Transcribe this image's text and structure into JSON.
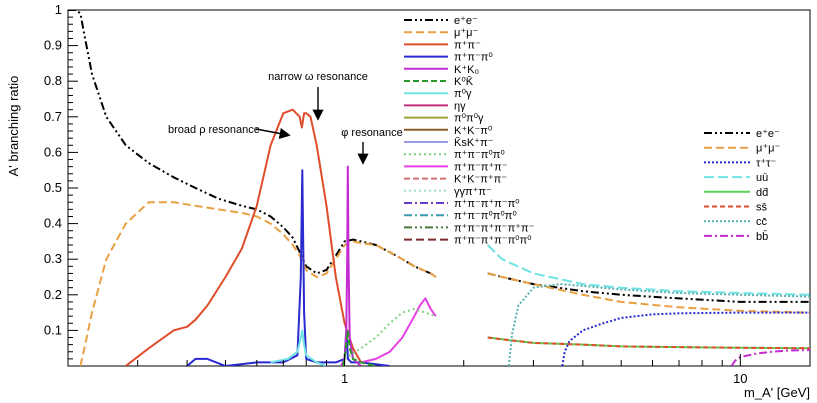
{
  "chart_data": {
    "type": "line",
    "title": "",
    "xlabel": "m_A' [GeV]",
    "ylabel": "A' branching ratio",
    "xscale": "log",
    "xlim": [
      0.2,
      15
    ],
    "ylim": [
      0,
      1
    ],
    "grid": false,
    "x_ticks": [
      {
        "value": 1,
        "label": "1"
      },
      {
        "value": 10,
        "label": "10"
      }
    ],
    "y_ticks": [
      {
        "value": 0.1,
        "label": "0.1"
      },
      {
        "value": 0.2,
        "label": "0.2"
      },
      {
        "value": 0.3,
        "label": "0.3"
      },
      {
        "value": 0.4,
        "label": "0.4"
      },
      {
        "value": 0.5,
        "label": "0.5"
      },
      {
        "value": 0.6,
        "label": "0.6"
      },
      {
        "value": 0.7,
        "label": "0.7"
      },
      {
        "value": 0.8,
        "label": "0.8"
      },
      {
        "value": 0.9,
        "label": "0.9"
      },
      {
        "value": 1,
        "label": "1"
      }
    ],
    "annotations": [
      {
        "text": "narrow ω resonance",
        "x": 0.78,
        "y": 0.71
      },
      {
        "text": "broad ρ resonance",
        "x": 0.7,
        "y": 0.68
      },
      {
        "text": "φ resonance",
        "x": 1.02,
        "y": 0.57
      }
    ],
    "legend_hadronic": {
      "placement": "top-center",
      "entries": [
        {
          "label": "e⁺e⁻",
          "color": "#000000",
          "dash": "8,3,2,3,2,3"
        },
        {
          "label": "μ⁺μ⁻",
          "color": "#e8a043",
          "dash": "8,4"
        },
        {
          "label": "π⁺π⁻",
          "color": "#e04d2b",
          "dash": ""
        },
        {
          "label": "π⁺π⁻π⁰",
          "color": "#2a2ad0",
          "dash": ""
        },
        {
          "label": "K⁺K₀",
          "color": "#c42bd0",
          "dash": ""
        },
        {
          "label": "K⁰K̄",
          "color": "#2a9a2a",
          "dash": "6,3"
        },
        {
          "label": "π⁰γ",
          "color": "#6fe3e3",
          "dash": ""
        },
        {
          "label": "ηγ",
          "color": "#c0307a",
          "dash": ""
        },
        {
          "label": "π⁰π⁰γ",
          "color": "#a0a03a",
          "dash": ""
        },
        {
          "label": "K⁺K⁻π⁰",
          "color": "#8a5a2a",
          "dash": ""
        },
        {
          "label": "K̄sK⁺π⁻",
          "color": "#9a9ae8",
          "dash": ""
        },
        {
          "label": "π⁺π⁻π⁰π⁰",
          "color": "#7fd07f",
          "dash": "2,3"
        },
        {
          "label": "π⁺π⁻π⁺π⁻",
          "color": "#e640e6",
          "dash": ""
        },
        {
          "label": "K⁺K⁻π⁺π⁻",
          "color": "#d07070",
          "dash": "6,3"
        },
        {
          "label": "γγπ⁺π⁻",
          "color": "#a0e0c0",
          "dash": "2,3"
        },
        {
          "label": "π⁺π⁻π⁺π⁻π⁰",
          "color": "#6a3ac8",
          "dash": "8,3,2,3"
        },
        {
          "label": "π⁺π⁻π⁰π⁰π⁰",
          "color": "#3a9ab0",
          "dash": "8,3,2,3"
        },
        {
          "label": "π⁺π⁻π⁺π⁻π⁺π⁻",
          "color": "#4a7a3a",
          "dash": "8,3,2,3,2,3"
        },
        {
          "label": "π⁺π⁻π⁺π⁻π⁰π⁰",
          "color": "#7a2a2a",
          "dash": "8,4"
        }
      ]
    },
    "legend_partonic": {
      "placement": "right",
      "entries": [
        {
          "label": "e⁺e⁻",
          "color": "#000000",
          "dash": "8,3,2,3,2,3"
        },
        {
          "label": "μ⁺μ⁻",
          "color": "#e8a043",
          "dash": "8,4"
        },
        {
          "label": "τ⁺τ⁻",
          "color": "#2a2ad0",
          "dash": "2,2"
        },
        {
          "label": "uū",
          "color": "#6fe3e3",
          "dash": "10,4"
        },
        {
          "label": "dd̄",
          "color": "#5ad05a",
          "dash": ""
        },
        {
          "label": "ss̄",
          "color": "#e04d2b",
          "dash": "5,3"
        },
        {
          "label": "cc̄",
          "color": "#5ab0b0",
          "dash": "2,2"
        },
        {
          "label": "bb̄",
          "color": "#c42bd0",
          "dash": "8,3,2,3"
        }
      ]
    },
    "series": [
      {
        "key": "ee_low",
        "color": "#000000",
        "dash": "8,3,2,3,2,3",
        "x": [
          0.2,
          0.21,
          0.215,
          0.22,
          0.23,
          0.25,
          0.28,
          0.32,
          0.37,
          0.42,
          0.48,
          0.55,
          0.6,
          0.65,
          0.7,
          0.74,
          0.77,
          0.8,
          0.85,
          0.9,
          0.95,
          1.0,
          1.05,
          1.1,
          1.2,
          1.35,
          1.5,
          1.65,
          1.7
        ],
        "y": [
          1.0,
          1.0,
          0.99,
          0.93,
          0.82,
          0.7,
          0.62,
          0.57,
          0.53,
          0.5,
          0.47,
          0.45,
          0.44,
          0.42,
          0.39,
          0.36,
          0.32,
          0.28,
          0.26,
          0.27,
          0.31,
          0.35,
          0.355,
          0.35,
          0.34,
          0.31,
          0.28,
          0.26,
          0.25
        ]
      },
      {
        "key": "mumu_low",
        "color": "#e8a043",
        "dash": "8,4",
        "x": [
          0.215,
          0.22,
          0.23,
          0.25,
          0.28,
          0.32,
          0.37,
          0.42,
          0.48,
          0.55,
          0.6,
          0.65,
          0.7,
          0.74,
          0.77,
          0.8,
          0.85,
          0.9,
          0.95,
          1.0,
          1.05,
          1.1,
          1.2,
          1.35,
          1.5,
          1.65,
          1.7
        ],
        "y": [
          0.0,
          0.05,
          0.15,
          0.3,
          0.4,
          0.46,
          0.46,
          0.45,
          0.44,
          0.43,
          0.42,
          0.4,
          0.37,
          0.34,
          0.31,
          0.27,
          0.25,
          0.26,
          0.3,
          0.34,
          0.35,
          0.345,
          0.34,
          0.31,
          0.28,
          0.26,
          0.25
        ]
      },
      {
        "key": "pipi",
        "color": "#e04d2b",
        "dash": "",
        "x": [
          0.28,
          0.32,
          0.37,
          0.4,
          0.42,
          0.45,
          0.5,
          0.55,
          0.6,
          0.65,
          0.7,
          0.74,
          0.77,
          0.78,
          0.79,
          0.8,
          0.82,
          0.85,
          0.9,
          0.95,
          1.0,
          1.05,
          1.1
        ],
        "y": [
          0.0,
          0.05,
          0.1,
          0.11,
          0.13,
          0.17,
          0.25,
          0.33,
          0.45,
          0.62,
          0.71,
          0.72,
          0.7,
          0.67,
          0.71,
          0.71,
          0.7,
          0.62,
          0.45,
          0.25,
          0.12,
          0.05,
          0.01
        ]
      },
      {
        "key": "pipipi0",
        "color": "#2a2ad0",
        "dash": "",
        "x": [
          0.4,
          0.42,
          0.45,
          0.5,
          0.6,
          0.7,
          0.76,
          0.775,
          0.782,
          0.79,
          0.8,
          0.85,
          0.95,
          1.0,
          1.01,
          1.02,
          1.04,
          1.1,
          1.3
        ],
        "y": [
          0.0,
          0.02,
          0.02,
          0.0,
          0.01,
          0.01,
          0.03,
          0.25,
          0.55,
          0.15,
          0.02,
          0.01,
          0.01,
          0.02,
          0.1,
          0.02,
          0.01,
          0.01,
          0.0
        ]
      },
      {
        "key": "pi0gamma",
        "color": "#6fe3e3",
        "dash": "",
        "x": [
          0.65,
          0.72,
          0.76,
          0.775,
          0.782,
          0.79,
          0.8,
          0.85,
          0.9
        ],
        "y": [
          0.01,
          0.02,
          0.04,
          0.08,
          0.1,
          0.06,
          0.03,
          0.01,
          0.0
        ]
      },
      {
        "key": "KK",
        "color": "#c42bd0",
        "dash": "",
        "x": [
          0.98,
          1.0,
          1.01,
          1.015,
          1.019,
          1.023,
          1.03,
          1.05,
          1.1
        ],
        "y": [
          0.0,
          0.02,
          0.1,
          0.3,
          0.56,
          0.3,
          0.08,
          0.02,
          0.0
        ]
      },
      {
        "key": "4pi",
        "color": "#e640e6",
        "dash": "",
        "x": [
          1.1,
          1.2,
          1.3,
          1.4,
          1.5,
          1.55,
          1.6,
          1.65,
          1.7
        ],
        "y": [
          0.01,
          0.02,
          0.04,
          0.08,
          0.14,
          0.17,
          0.19,
          0.16,
          0.14
        ]
      },
      {
        "key": "4pi_neutral",
        "color": "#7fd07f",
        "dash": "2,3",
        "x": [
          1.0,
          1.1,
          1.2,
          1.3,
          1.4,
          1.5,
          1.6,
          1.7
        ],
        "y": [
          0.02,
          0.05,
          0.08,
          0.12,
          0.15,
          0.16,
          0.15,
          0.14
        ]
      },
      {
        "key": "K0K0bar",
        "color": "#2a9a2a",
        "dash": "6,3",
        "x": [
          0.99,
          1.0,
          1.01,
          1.019,
          1.03,
          1.05,
          1.1,
          1.2
        ],
        "y": [
          0.0,
          0.02,
          0.06,
          0.1,
          0.05,
          0.02,
          0.01,
          0.0
        ]
      },
      {
        "key": "ee_high",
        "color": "#000000",
        "dash": "8,3,2,3,2,3",
        "x": [
          2.3,
          2.5,
          3.0,
          4.0,
          5.0,
          7.0,
          10.0,
          15.0
        ],
        "y": [
          0.26,
          0.25,
          0.23,
          0.21,
          0.2,
          0.19,
          0.18,
          0.18
        ]
      },
      {
        "key": "mumu_high",
        "color": "#e8a043",
        "dash": "8,4",
        "x": [
          2.3,
          2.5,
          3.0,
          4.0,
          5.0,
          7.0,
          10.0,
          15.0
        ],
        "y": [
          0.26,
          0.25,
          0.23,
          0.2,
          0.18,
          0.165,
          0.155,
          0.15
        ]
      },
      {
        "key": "uu",
        "color": "#6fe3e3",
        "dash": "10,4",
        "x": [
          2.3,
          2.5,
          3.0,
          4.0,
          5.0,
          7.0,
          10.0,
          15.0
        ],
        "y": [
          0.34,
          0.3,
          0.26,
          0.23,
          0.22,
          0.21,
          0.205,
          0.2
        ]
      },
      {
        "key": "dd",
        "color": "#5ad05a",
        "dash": "",
        "x": [
          2.3,
          2.5,
          3.0,
          4.0,
          5.0,
          7.0,
          10.0,
          15.0
        ],
        "y": [
          0.08,
          0.075,
          0.065,
          0.06,
          0.055,
          0.053,
          0.051,
          0.05
        ]
      },
      {
        "key": "ss",
        "color": "#e04d2b",
        "dash": "5,3",
        "x": [
          2.3,
          2.5,
          3.0,
          4.0,
          5.0,
          7.0,
          10.0,
          15.0
        ],
        "y": [
          0.08,
          0.075,
          0.065,
          0.06,
          0.055,
          0.053,
          0.051,
          0.05
        ]
      },
      {
        "key": "cc",
        "color": "#5ab0b0",
        "dash": "2,2",
        "x": [
          2.6,
          2.65,
          2.75,
          3.0,
          3.5,
          4.0,
          5.0,
          7.0,
          10.0,
          15.0
        ],
        "y": [
          0.0,
          0.09,
          0.17,
          0.22,
          0.23,
          0.225,
          0.215,
          0.205,
          0.2,
          0.195
        ]
      },
      {
        "key": "tautau",
        "color": "#2a2ad0",
        "dash": "2,2",
        "x": [
          3.55,
          3.6,
          3.7,
          4.0,
          4.5,
          5.0,
          6.0,
          7.0,
          10.0,
          15.0
        ],
        "y": [
          0.0,
          0.04,
          0.07,
          0.1,
          0.12,
          0.135,
          0.145,
          0.148,
          0.15,
          0.15
        ]
      },
      {
        "key": "bb",
        "color": "#c42bd0",
        "dash": "8,3,2,3",
        "x": [
          9.5,
          9.7,
          10.0,
          11.0,
          12.0,
          13.0,
          15.0
        ],
        "y": [
          0.0,
          0.015,
          0.025,
          0.035,
          0.04,
          0.043,
          0.045
        ]
      }
    ]
  }
}
